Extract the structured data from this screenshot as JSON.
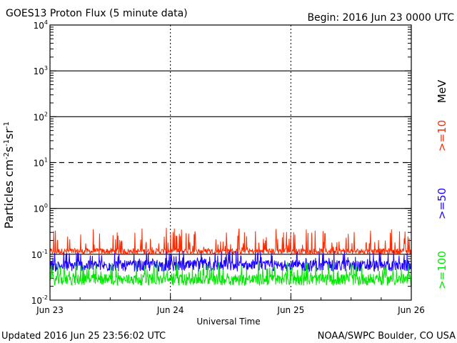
{
  "header": {
    "title": "GOES13 Proton Flux (5 minute data)",
    "begin": "Begin: 2016 Jun 23 0000 UTC"
  },
  "footer": {
    "updated": "Updated 2016 Jun 25 23:56:02 UTC",
    "credit": "NOAA/SWPC Boulder, CO USA"
  },
  "chart_data": {
    "type": "line",
    "xlabel": "Universal Time",
    "ylabel_main": "Particles cm",
    "ylabel_parts": [
      "-2",
      "s",
      "-1",
      "sr",
      "-1"
    ],
    "y_scale": "log",
    "ylim": [
      0.01,
      10000
    ],
    "y_ticks": [
      {
        "base": "10",
        "exp": "4",
        "value": 10000
      },
      {
        "base": "10",
        "exp": "3",
        "value": 1000
      },
      {
        "base": "10",
        "exp": "2",
        "value": 100
      },
      {
        "base": "10",
        "exp": "1",
        "value": 10
      },
      {
        "base": "10",
        "exp": "0",
        "value": 1
      },
      {
        "base": "10",
        "exp": "-1",
        "value": 0.1
      },
      {
        "base": "10",
        "exp": "-2",
        "value": 0.01
      }
    ],
    "x_ticks": [
      "Jun 23",
      "Jun 24",
      "Jun 25",
      "Jun 26"
    ],
    "xlim": [
      "2016-06-23",
      "2016-06-26"
    ],
    "unit_label": "MeV",
    "series": [
      {
        "name": ">=10",
        "color": "#ff2a00",
        "baseline": 0.12,
        "low": 0.1,
        "high": 0.38
      },
      {
        "name": ">=50",
        "color": "#1c00ff",
        "baseline": 0.06,
        "low": 0.042,
        "high": 0.12
      },
      {
        "name": ">=100",
        "color": "#00e800",
        "baseline": 0.03,
        "low": 0.021,
        "high": 0.068
      }
    ],
    "thresholds": [
      {
        "value": 1000,
        "style": "solid"
      },
      {
        "value": 100,
        "style": "solid"
      },
      {
        "value": 10,
        "style": "dashed"
      },
      {
        "value": 1,
        "style": "solid"
      },
      {
        "value": 0.1,
        "style": "solid"
      }
    ]
  }
}
